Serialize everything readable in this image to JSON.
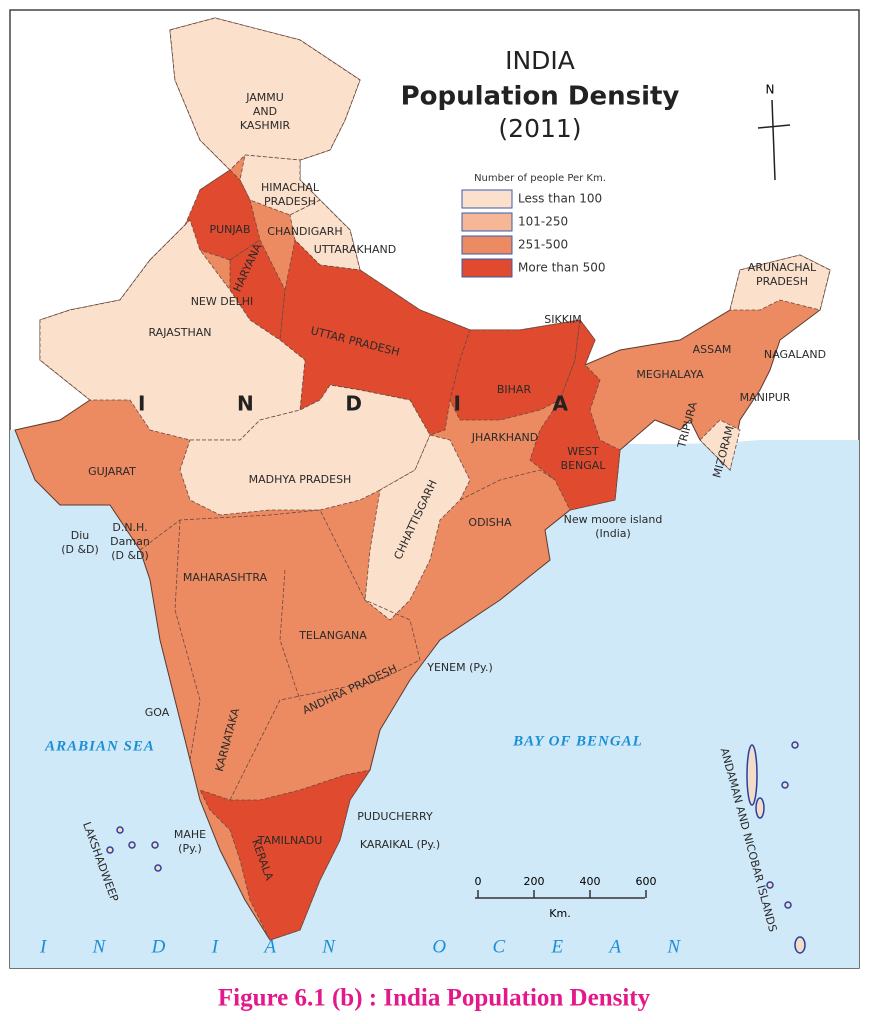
{
  "title": {
    "line1": "INDIA",
    "line2": "Population Density",
    "line3": "(2011)"
  },
  "north": "N",
  "legend": {
    "heading": "Number of people Per Km.",
    "items": [
      "Less than 100",
      "101-250",
      "251-500",
      "More than 500"
    ]
  },
  "country": "INDIA",
  "ocean": "INDIAN OCEAN",
  "labels": [
    [
      "JAMMU",
      "AND",
      "KASHMIR"
    ],
    [
      "HIMACHAL",
      "PRADESH"
    ],
    [
      "PUNJAB"
    ],
    [
      "CHANDIGARH"
    ],
    [
      "HARYANA"
    ],
    [
      "UTTARAKHAND"
    ],
    [
      "NEW DELHI"
    ],
    [
      "RAJASTHAN"
    ],
    [
      "UTTAR PRADESH"
    ],
    [
      "SIKKIM"
    ],
    [
      "ARUNACHAL",
      "PRADESH"
    ],
    [
      "ASSAM"
    ],
    [
      "NAGALAND"
    ],
    [
      "MEGHALAYA"
    ],
    [
      "MANIPUR"
    ],
    [
      "TRIPURA"
    ],
    [
      "MIZORAM"
    ],
    [
      "BIHAR"
    ],
    [
      "JHARKHAND"
    ],
    [
      "WEST",
      "BENGAL"
    ],
    [
      "GUJARAT"
    ],
    [
      "MADHYA PRADESH"
    ],
    [
      "CHHATTISGARH"
    ],
    [
      "ODISHA"
    ],
    [
      "MAHARASHTRA"
    ],
    [
      "TELANGANA"
    ],
    [
      "ANDHRA PRADESH"
    ],
    [
      "KARNATAKA"
    ],
    [
      "TAMILNADU"
    ],
    [
      "KERALA"
    ],
    [
      "GOA"
    ],
    [
      "Diu",
      "(D &D)"
    ],
    [
      "D.N.H.",
      "Daman",
      "(D &D)"
    ],
    [
      "New moore island",
      "(India)"
    ],
    [
      "YENEM (Py.)"
    ],
    [
      "PUDUCHERRY"
    ],
    [
      "KARAIKAL (Py.)"
    ],
    [
      "MAHE",
      "(Py.)"
    ],
    [
      "LAKSHADWEEP"
    ],
    [
      "ANDAMAN AND NICOBAR ISLANDS"
    ]
  ],
  "seas": [
    "ARABIAN SEA",
    "BAY OF BENGAL"
  ],
  "scale": {
    "ticks": [
      "0",
      "200",
      "400",
      "600"
    ],
    "unit": "Km."
  },
  "caption": "Figure 6.1 (b) : India Population Density"
}
